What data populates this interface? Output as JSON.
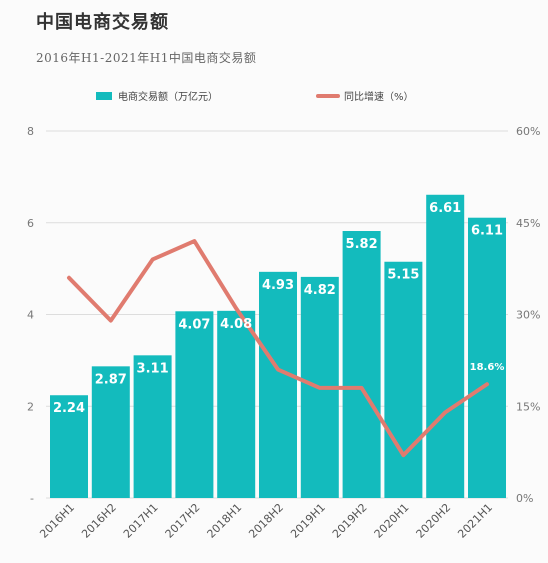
{
  "header": {
    "title": "中国电商交易额",
    "subtitle": "2016年H1-2021年H1中国电商交易额"
  },
  "colors": {
    "bar": "#13bbbd",
    "line": "#e07b6f",
    "grid": "#dddddd",
    "label": "#ffffff"
  },
  "chart_data": {
    "type": "bar",
    "title": "中国电商交易额",
    "subtitle": "2016年H1-2021年H1中国电商交易额",
    "categories": [
      "2016H1",
      "2016H2",
      "2017H1",
      "2017H2",
      "2018H1",
      "2018H2",
      "2019H1",
      "2019H2",
      "2020H1",
      "2020H2",
      "2021H1"
    ],
    "series": [
      {
        "name": "电商交易额（万亿元）",
        "type": "bar",
        "axis": "left",
        "values": [
          2.24,
          2.87,
          3.11,
          4.07,
          4.08,
          4.93,
          4.82,
          5.82,
          5.15,
          6.61,
          6.11
        ],
        "labels": [
          "2.24",
          "2.87",
          "3.11",
          "4.07",
          "4.08",
          "4.93",
          "4.82",
          "5.82",
          "5.15",
          "6.61",
          "6.11"
        ]
      },
      {
        "name": "同比增速（%）",
        "type": "line",
        "axis": "right",
        "values": [
          36,
          29,
          39,
          42,
          31,
          21,
          18,
          18,
          7,
          14,
          18.6
        ],
        "labels": [
          "",
          "",
          "",
          "",
          "",
          "",
          "",
          "",
          "",
          "",
          "18.6%"
        ]
      }
    ],
    "y_left": {
      "ylim": [
        0,
        8
      ],
      "ticks": [
        0,
        2,
        4,
        6,
        8
      ],
      "tick_labels": [
        "-",
        "2",
        "4",
        "6",
        "8"
      ]
    },
    "y_right": {
      "ylim": [
        0,
        60
      ],
      "ticks": [
        0,
        15,
        30,
        45,
        60
      ],
      "tick_labels": [
        "0%",
        "15%",
        "30%",
        "45%",
        "60%"
      ]
    },
    "grid": true,
    "legend_position": "top"
  }
}
